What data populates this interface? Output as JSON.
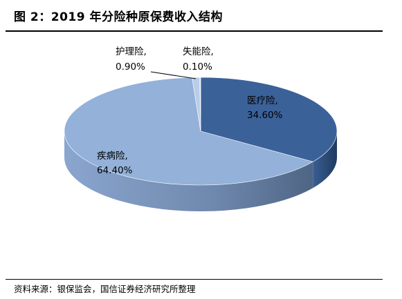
{
  "header": {
    "title": "图 2：2019 年分险种原保费收入结构"
  },
  "footer": {
    "source": "资料来源：银保监会，国信证券经济研究所整理"
  },
  "chart_data": {
    "type": "pie",
    "title": "",
    "slices": [
      {
        "name": "医疗险",
        "value": 34.6,
        "value_label": "34.60%",
        "color": "#3b6199"
      },
      {
        "name": "疾病险",
        "value": 64.4,
        "value_label": "64.40%",
        "color": "#93b1d9"
      },
      {
        "name": "护理险",
        "value": 0.9,
        "value_label": "0.90%",
        "color": "#b9cde8"
      },
      {
        "name": "失能险",
        "value": 0.1,
        "value_label": "0.10%",
        "color": "#d6e2f2"
      }
    ]
  }
}
